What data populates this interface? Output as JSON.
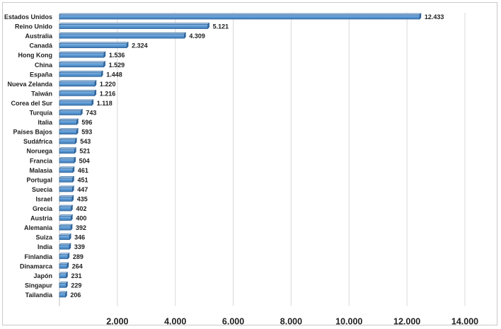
{
  "chart_data": {
    "type": "bar",
    "orientation": "horizontal",
    "title": "",
    "xlabel": "",
    "ylabel": "",
    "xlim": [
      0,
      14000
    ],
    "x_ticks": [
      2000,
      4000,
      6000,
      8000,
      10000,
      12000,
      14000
    ],
    "x_tick_labels": [
      "2.000",
      "4.000",
      "6.000",
      "8.000",
      "10.000",
      "12.000",
      "14.000"
    ],
    "grid": "vertical",
    "legend": "none",
    "bar_color": "#5b9bd5",
    "bar_edge_color": "#2e5f8f",
    "categories": [
      "Estados Unidos",
      "Reino Unido",
      "Australia",
      "Canadá",
      "Hong Kong",
      "China",
      "España",
      "Nueva Zelanda",
      "Taiwán",
      "Corea del Sur",
      "Turquía",
      "Italia",
      "Países Bajos",
      "Sudáfrica",
      "Noruega",
      "Francia",
      "Malasia",
      "Portugal",
      "Suecia",
      "Israel",
      "Grecia",
      "Austria",
      "Alemania",
      "Suiza",
      "India",
      "Finlandia",
      "Dinamarca",
      "Japón",
      "Singapur",
      "Tailandia"
    ],
    "values": [
      12433,
      5121,
      4309,
      2324,
      1536,
      1529,
      1448,
      1220,
      1216,
      1118,
      743,
      596,
      593,
      543,
      521,
      504,
      461,
      451,
      447,
      435,
      402,
      400,
      392,
      346,
      339,
      289,
      264,
      231,
      229,
      206
    ],
    "value_labels": [
      "12.433",
      "5.121",
      "4.309",
      "2.324",
      "1.536",
      "1.529",
      "1.448",
      "1.220",
      "1.216",
      "1.118",
      "743",
      "596",
      "593",
      "543",
      "521",
      "504",
      "461",
      "451",
      "447",
      "435",
      "402",
      "400",
      "392",
      "346",
      "339",
      "289",
      "264",
      "231",
      "229",
      "206"
    ]
  }
}
